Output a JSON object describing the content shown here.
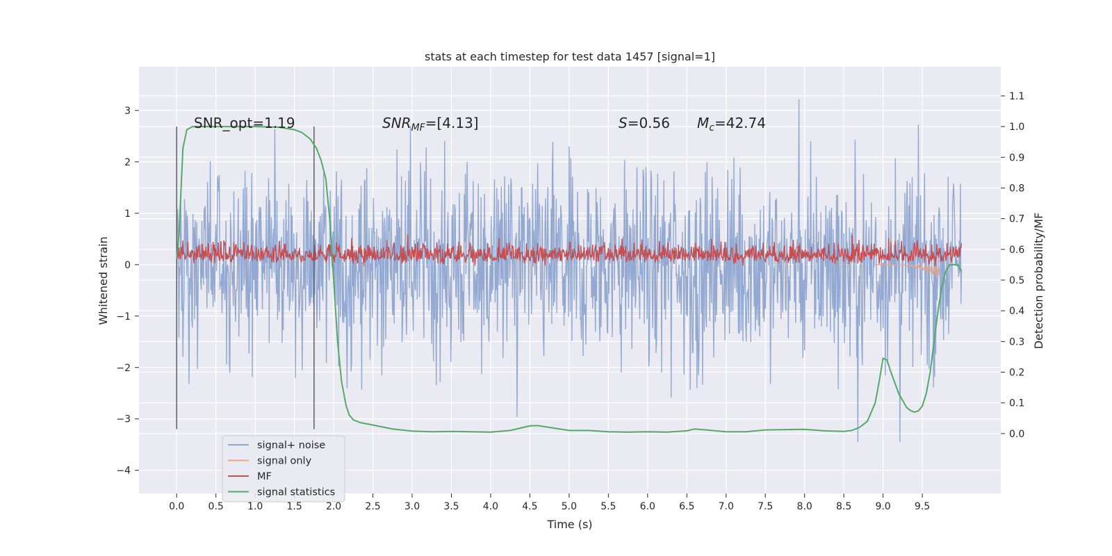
{
  "chart_data": {
    "type": "line",
    "title": "stats at each timestep for test data 1457 [signal=1]",
    "xlabel": "Time (s)",
    "ylabel_left": "Whitened strain",
    "ylabel_right": "Detection probability/MF",
    "xlim": [
      -0.48,
      10.5
    ],
    "ylim_left": [
      -4.45,
      3.85
    ],
    "ylim_right": [
      -0.195,
      1.195
    ],
    "x_ticks": [
      "0.0",
      "0.5",
      "1.0",
      "1.5",
      "2.0",
      "2.5",
      "3.0",
      "3.5",
      "4.0",
      "4.5",
      "5.0",
      "5.5",
      "6.0",
      "6.5",
      "7.0",
      "7.5",
      "8.0",
      "8.5",
      "9.0",
      "9.5"
    ],
    "y_ticks_left": [
      "3",
      "2",
      "1",
      "0",
      "−1",
      "−2",
      "−3",
      "−4"
    ],
    "y_ticks_right": [
      "1.1",
      "1.0",
      "0.9",
      "0.8",
      "0.7",
      "0.6",
      "0.5",
      "0.4",
      "0.3",
      "0.2",
      "0.1",
      "0.0"
    ],
    "grid": true,
    "legend_position": "lower-left",
    "annotations": {
      "snr_opt": "SNR_opt=1.19",
      "snr_mf_sym": "SNR",
      "snr_mf_sub": "MF",
      "snr_mf_rest": "=[4.13]",
      "s_sym": "S",
      "s_rest": "=0.56",
      "mc_sym": "M",
      "mc_sub": "c",
      "mc_rest": "=42.74"
    },
    "vertical_markers": [
      0.0,
      1.75
    ],
    "series": [
      {
        "name": "signal+ noise",
        "color": "#8fa5cf",
        "axis": "left",
        "kind": "noise",
        "x_range": [
          0.0,
          10.0
        ],
        "envelope": [
          -3.45,
          3.48
        ]
      },
      {
        "name": "signal only",
        "color": "#e8a58a",
        "axis": "left",
        "kind": "chirp",
        "x_range": [
          8.9,
          9.72
        ],
        "peak": -0.25
      },
      {
        "name": "MF",
        "color": "#c44e52",
        "axis": "right",
        "kind": "noise",
        "x_range": [
          0.0,
          10.0
        ],
        "envelope": [
          0.53,
          0.69
        ]
      },
      {
        "name": "signal statistics",
        "color": "#55a868",
        "axis": "right",
        "kind": "line",
        "x": [
          0.0,
          0.03,
          0.08,
          0.13,
          0.2,
          0.3,
          0.5,
          1.0,
          1.3,
          1.5,
          1.6,
          1.7,
          1.78,
          1.84,
          1.9,
          1.95,
          2.0,
          2.05,
          2.1,
          2.16,
          2.2,
          2.25,
          2.35,
          2.5,
          2.75,
          3.0,
          3.25,
          3.5,
          3.75,
          4.0,
          4.25,
          4.5,
          4.6,
          4.75,
          5.0,
          5.25,
          5.5,
          5.75,
          6.0,
          6.25,
          6.5,
          6.6,
          6.75,
          7.0,
          7.25,
          7.5,
          7.75,
          8.0,
          8.25,
          8.5,
          8.6,
          8.7,
          8.8,
          8.9,
          8.95,
          9.0,
          9.05,
          9.1,
          9.2,
          9.3,
          9.35,
          9.4,
          9.45,
          9.5,
          9.55,
          9.6,
          9.65,
          9.7,
          9.75,
          9.8,
          9.85,
          9.9,
          9.95,
          10.0
        ],
        "y": [
          0.57,
          0.65,
          0.93,
          0.99,
          1.0,
          1.0,
          1.0,
          1.0,
          0.998,
          0.99,
          0.98,
          0.96,
          0.93,
          0.89,
          0.83,
          0.7,
          0.5,
          0.3,
          0.17,
          0.09,
          0.06,
          0.045,
          0.035,
          0.028,
          0.015,
          0.008,
          0.006,
          0.007,
          0.006,
          0.005,
          0.01,
          0.025,
          0.026,
          0.02,
          0.01,
          0.01,
          0.006,
          0.005,
          0.006,
          0.005,
          0.009,
          0.015,
          0.012,
          0.006,
          0.006,
          0.012,
          0.013,
          0.014,
          0.009,
          0.007,
          0.01,
          0.02,
          0.04,
          0.1,
          0.17,
          0.245,
          0.24,
          0.2,
          0.13,
          0.085,
          0.075,
          0.07,
          0.074,
          0.09,
          0.13,
          0.2,
          0.3,
          0.4,
          0.48,
          0.53,
          0.55,
          0.55,
          0.55,
          0.53
        ]
      }
    ]
  }
}
